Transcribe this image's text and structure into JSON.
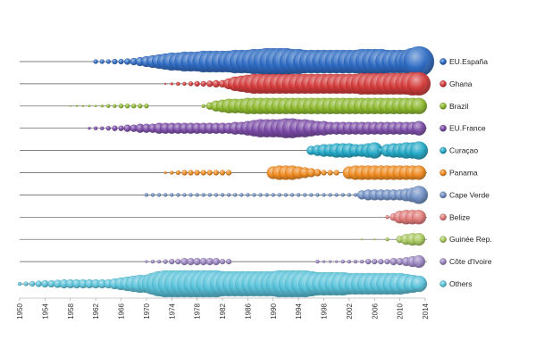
{
  "chart_data": {
    "type": "scatter",
    "title": "",
    "xlabel": "",
    "ylabel": "",
    "xlim": [
      1950,
      2014
    ],
    "x_ticks": [
      "1950",
      "1954",
      "1958",
      "1962",
      "1966",
      "1970",
      "1974",
      "1978",
      "1982",
      "1986",
      "1990",
      "1994",
      "1998",
      "2002",
      "2006",
      "2010",
      "2014"
    ],
    "grid": false,
    "legend_position": "right",
    "series": [
      {
        "name": "EU.España",
        "color": "#2f6cc4",
        "segments": [
          {
            "start": 1962,
            "end": 2013,
            "sizes": [
              2.5,
              2.5,
              2.5,
              3,
              3,
              3.5,
              4,
              5,
              6,
              7,
              8,
              9,
              10,
              10,
              11,
              11,
              11,
              12,
              12,
              12,
              12,
              12,
              13,
              13,
              13,
              14,
              14,
              15,
              15,
              15,
              15,
              14,
              14,
              13,
              13,
              13,
              13,
              13,
              13,
              13,
              13,
              13,
              14,
              14,
              14,
              14,
              13,
              13,
              13,
              13,
              15,
              17
            ]
          }
        ]
      },
      {
        "name": "Ghana",
        "color": "#d43b3b",
        "segments": [
          {
            "start": 1973,
            "end": 2013,
            "sizes": [
              1,
              1.5,
              2,
              2,
              2.5,
              3,
              3,
              3.5,
              4,
              4,
              6,
              8,
              9,
              10,
              11,
              11,
              11,
              11,
              11,
              11,
              11,
              11,
              11,
              11,
              11,
              11,
              11,
              11,
              11,
              11,
              11,
              12,
              12,
              12,
              12,
              12,
              12,
              12,
              12,
              13,
              13
            ]
          }
        ]
      },
      {
        "name": "Brazil",
        "color": "#8cb82c",
        "segments": [
          {
            "start": 1958,
            "end": 1970,
            "sizes": [
              0.8,
              1,
              1,
              1.2,
              1.2,
              1.5,
              2,
              2,
              2.5,
              2.5,
              2.5,
              2.5,
              2.5
            ]
          },
          {
            "start": 1979,
            "end": 2013,
            "sizes": [
              2,
              4,
              6,
              7,
              8,
              8,
              8,
              9,
              9,
              9,
              9,
              9,
              9,
              9,
              9,
              9,
              9,
              9,
              9,
              9,
              9,
              9,
              9,
              9,
              9,
              9,
              9,
              9,
              9,
              9,
              9,
              9,
              9,
              9,
              9
            ]
          }
        ]
      },
      {
        "name": "EU.France",
        "color": "#7a4aa6",
        "segments": [
          {
            "start": 1961,
            "end": 2013,
            "sizes": [
              1.5,
              2,
              2,
              2.5,
              3,
              3,
              4,
              4,
              5,
              5,
              5,
              6,
              6,
              6,
              6,
              6,
              6,
              6,
              6,
              6,
              6,
              6,
              6,
              7,
              7,
              8,
              9,
              10,
              10,
              10,
              10,
              11,
              11,
              10,
              10,
              9,
              8,
              8,
              7,
              7,
              7,
              7,
              7,
              7,
              7,
              7,
              7,
              7,
              7,
              7,
              7,
              7,
              8
            ]
          }
        ]
      },
      {
        "name": "Curaçao",
        "color": "#22a9c7",
        "segments": [
          {
            "start": 1996,
            "end": 2013,
            "sizes": [
              5,
              6,
              7,
              7,
              8,
              8,
              8,
              7,
              7,
              8,
              9,
              3,
              7,
              8,
              8,
              9,
              9,
              10
            ]
          }
        ]
      },
      {
        "name": "Panama",
        "color": "#f08a1e",
        "segments": [
          {
            "start": 1973,
            "end": 1983,
            "sizes": [
              1.5,
              2,
              2.5,
              3,
              3,
              3,
              3,
              3,
              3,
              3,
              3
            ]
          },
          {
            "start": 1990,
            "end": 2000,
            "sizes": [
              7,
              8,
              8,
              8,
              7,
              6,
              5,
              4,
              3,
              3,
              3
            ]
          },
          {
            "start": 2002,
            "end": 2013,
            "sizes": [
              7,
              8,
              8,
              8,
              8,
              8,
              8,
              8,
              8,
              8,
              8,
              8
            ]
          }
        ]
      },
      {
        "name": "Cape Verde",
        "color": "#6f8fc4",
        "segments": [
          {
            "start": 1970,
            "end": 2003,
            "sizes": [
              2,
              2,
              2,
              2,
              2,
              2,
              2,
              2,
              2,
              2,
              2,
              2,
              2,
              2,
              2,
              2,
              2,
              2,
              2,
              2,
              2,
              2,
              2,
              2,
              2,
              2,
              2,
              2,
              2,
              2,
              2,
              2,
              2,
              2
            ]
          },
          {
            "start": 2004,
            "end": 2013,
            "sizes": [
              5,
              6,
              6,
              6,
              6,
              6,
              6,
              7,
              8,
              10
            ]
          }
        ]
      },
      {
        "name": "Belize",
        "color": "#e07a78",
        "segments": [
          {
            "start": 2008,
            "end": 2013,
            "sizes": [
              2,
              4,
              7,
              8,
              8,
              8
            ]
          }
        ]
      },
      {
        "name": "Guinée Rep.",
        "color": "#a9c95e",
        "segments": [
          {
            "start": 2004,
            "end": 2013,
            "sizes": [
              1,
              0,
              1,
              0,
              2,
              0,
              4,
              6,
              7,
              7
            ]
          }
        ]
      },
      {
        "name": "Côte d'Ivoire",
        "color": "#9b86c2",
        "segments": [
          {
            "start": 1970,
            "end": 1983,
            "sizes": [
              1.5,
              2,
              2,
              2.5,
              3,
              3,
              4,
              4,
              4,
              4,
              4,
              4,
              3,
              3
            ]
          },
          {
            "start": 1997,
            "end": 2013,
            "sizes": [
              2,
              1.5,
              1.5,
              1.5,
              2,
              2,
              2,
              2,
              3,
              3,
              3,
              3,
              4,
              4,
              5,
              6,
              7
            ]
          }
        ]
      },
      {
        "name": "Others",
        "color": "#5cc5dc",
        "segments": [
          {
            "start": 1950,
            "end": 2013,
            "sizes": [
              2,
              2.5,
              3,
              3.5,
              4,
              4,
              4.5,
              5,
              5,
              5,
              5,
              5,
              5,
              5,
              5,
              6,
              7,
              8,
              9,
              10,
              10,
              12,
              14,
              15,
              15,
              15,
              15,
              15,
              15,
              15,
              15,
              15,
              14,
              14,
              14,
              14,
              14,
              14,
              14,
              14,
              14,
              15,
              15,
              15,
              15,
              15,
              14,
              13,
              13,
              13,
              13,
              13,
              12,
              12,
              12,
              12,
              12,
              12,
              12,
              12,
              12,
              11,
              10,
              9
            ]
          }
        ]
      }
    ]
  }
}
